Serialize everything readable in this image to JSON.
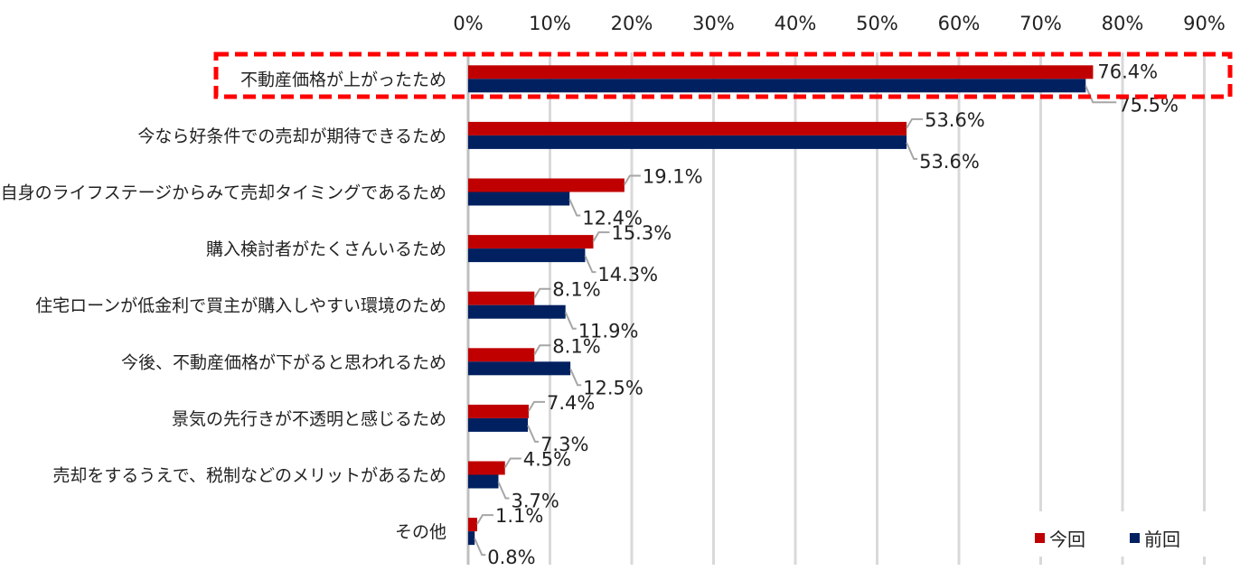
{
  "chart_data": {
    "type": "bar",
    "orientation": "horizontal",
    "title": "",
    "xlabel": "",
    "ylabel": "",
    "xlim": [
      0,
      90
    ],
    "x_ticks": [
      "0%",
      "10%",
      "20%",
      "30%",
      "40%",
      "50%",
      "60%",
      "70%",
      "80%",
      "90%"
    ],
    "grid": true,
    "legend_position": "bottom-right",
    "categories": [
      "不動産価格が上がったため",
      "今なら好条件での売却が期待できるため",
      "自身のライフステージからみて売却タイミングであるため",
      "購入検討者がたくさんいるため",
      "住宅ローンが低金利で買主が購入しやすい環境のため",
      "今後、不動産価格が下がると思われるため",
      "景気の先行きが不透明と感じるため",
      "売却をするうえで、税制などのメリットがあるため",
      "その他"
    ],
    "series": [
      {
        "name": "今回",
        "color": "#C00000",
        "values": [
          76.4,
          53.6,
          19.1,
          15.3,
          8.1,
          8.1,
          7.4,
          4.5,
          1.1
        ]
      },
      {
        "name": "前回",
        "color": "#002060",
        "values": [
          75.5,
          53.6,
          12.4,
          14.3,
          11.9,
          12.5,
          7.3,
          3.7,
          0.8
        ]
      }
    ],
    "highlighted_category": "不動産価格が上がったため",
    "highlight_color": "#FF0000"
  }
}
